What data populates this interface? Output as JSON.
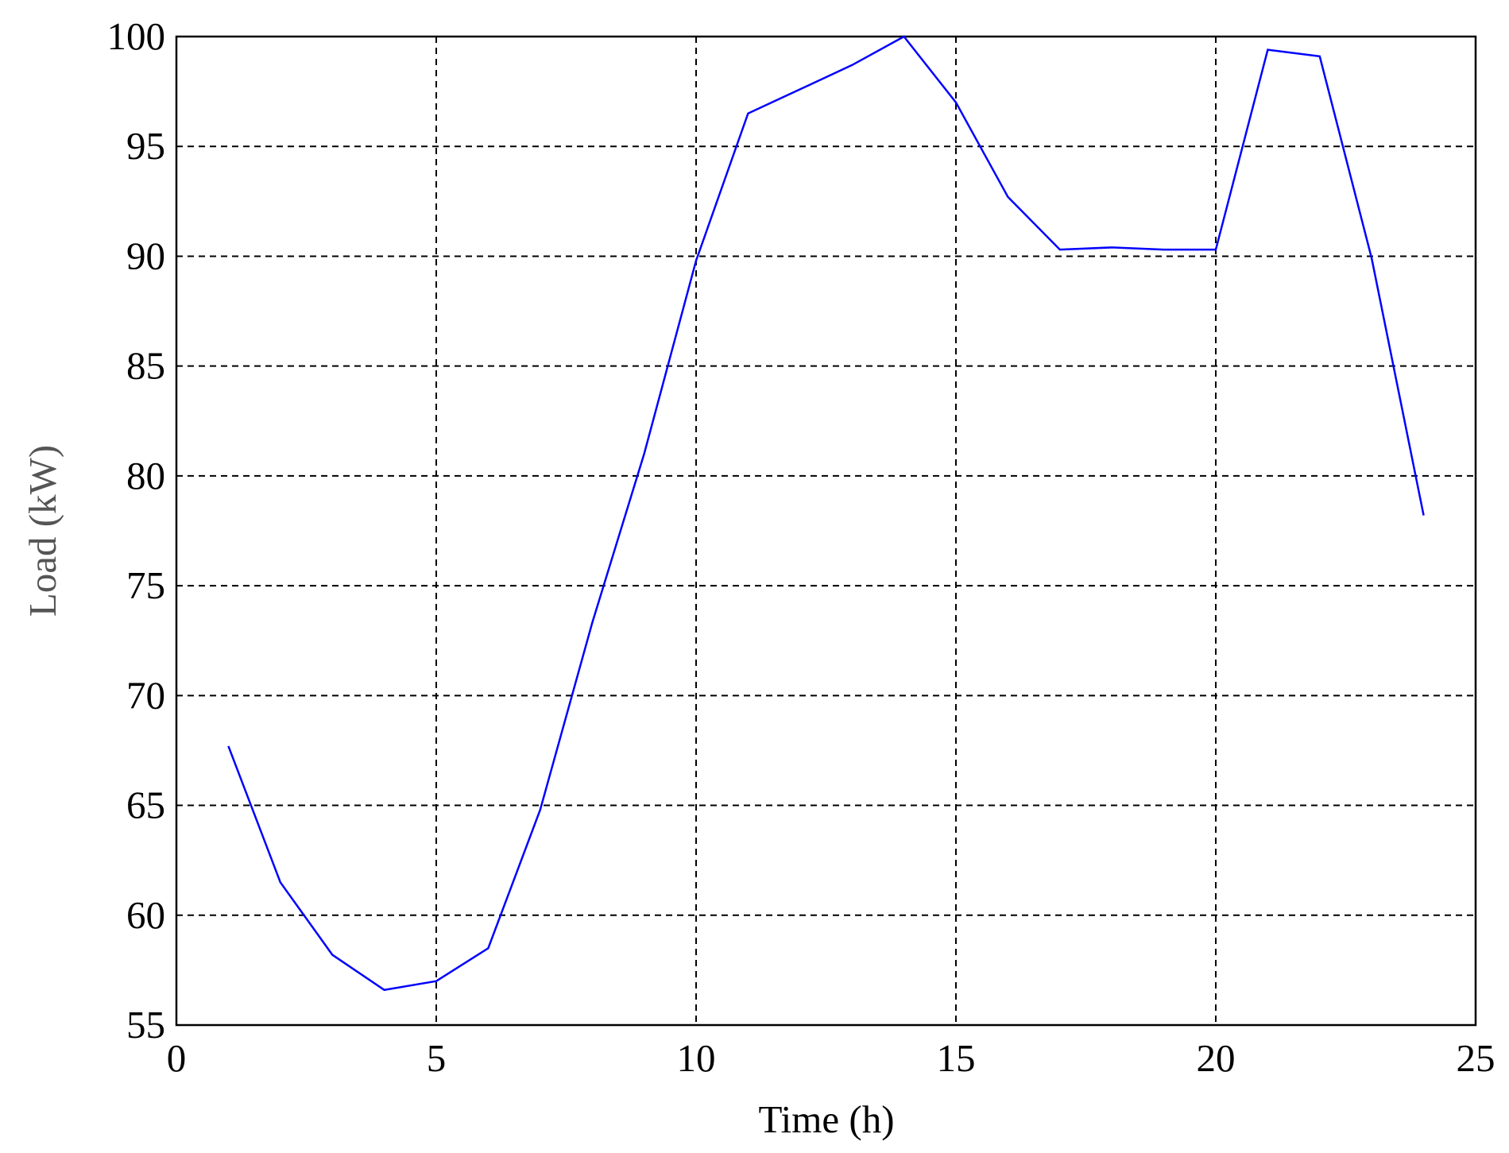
{
  "chart_data": {
    "type": "line",
    "xlabel": "Time (h)",
    "ylabel": "Load (kW)",
    "x": [
      1,
      2,
      3,
      4,
      5,
      6,
      7,
      8,
      9,
      10,
      11,
      12,
      13,
      14,
      15,
      16,
      17,
      18,
      19,
      20,
      21,
      22,
      23,
      24
    ],
    "series": [
      {
        "color": "#0000ff",
        "values": [
          67.7,
          61.5,
          58.2,
          56.6,
          57.0,
          58.5,
          64.8,
          73.3,
          81.0,
          89.8,
          96.5,
          97.6,
          98.7,
          100.0,
          97.0,
          92.7,
          90.3,
          90.4,
          90.3,
          90.3,
          99.4,
          99.1,
          89.9,
          78.2
        ]
      }
    ],
    "xlim": [
      0,
      25
    ],
    "xticks": [
      0,
      5,
      10,
      15,
      20,
      25
    ],
    "ylim": [
      55,
      100
    ],
    "yticks": [
      55,
      60,
      65,
      70,
      75,
      80,
      85,
      90,
      95,
      100
    ],
    "grid": true
  }
}
